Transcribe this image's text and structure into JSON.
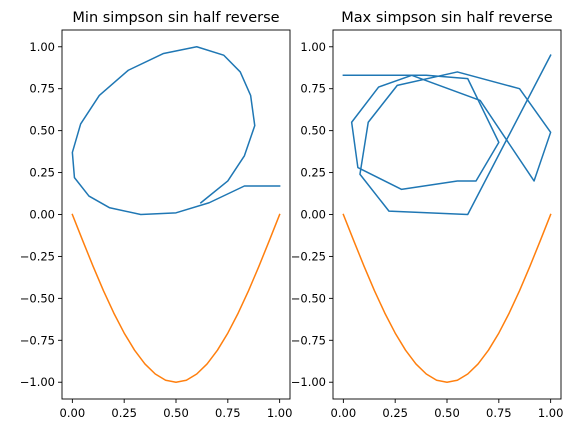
{
  "chart_data": [
    {
      "type": "line",
      "title": "Min simpson sin half reverse",
      "xlabel": "",
      "ylabel": "",
      "xlim": [
        -0.05,
        1.05
      ],
      "ylim": [
        -1.1,
        1.1
      ],
      "xticks": [
        0.0,
        0.25,
        0.5,
        0.75,
        1.0
      ],
      "xtick_labels": [
        "0.00",
        "0.25",
        "0.50",
        "0.75",
        "1.00"
      ],
      "yticks": [
        -1.0,
        -0.75,
        -0.5,
        -0.25,
        0.0,
        0.25,
        0.5,
        0.75,
        1.0
      ],
      "ytick_labels": [
        "−1.00",
        "−0.75",
        "−0.50",
        "−0.25",
        "0.00",
        "0.25",
        "0.50",
        "0.75",
        "1.00"
      ],
      "grid": false,
      "series": [
        {
          "color": "#1f77b4",
          "x": [
            0.62,
            0.75,
            0.83,
            0.88,
            0.86,
            0.81,
            0.73,
            0.6,
            0.44,
            0.27,
            0.13,
            0.04,
            0.0,
            0.01,
            0.08,
            0.18,
            0.33,
            0.5,
            0.66,
            0.83,
            1.0
          ],
          "y": [
            0.07,
            0.2,
            0.35,
            0.53,
            0.71,
            0.85,
            0.95,
            1.0,
            0.96,
            0.86,
            0.71,
            0.54,
            0.37,
            0.22,
            0.11,
            0.04,
            0.0,
            0.01,
            0.07,
            0.17,
            0.17
          ]
        },
        {
          "color": "#ff7f0e",
          "x": [
            0.0,
            0.05,
            0.1,
            0.15,
            0.2,
            0.25,
            0.3,
            0.35,
            0.4,
            0.45,
            0.5,
            0.55,
            0.6,
            0.65,
            0.7,
            0.75,
            0.8,
            0.85,
            0.9,
            0.95,
            1.0
          ],
          "y": [
            0.0,
            -0.156,
            -0.309,
            -0.454,
            -0.588,
            -0.707,
            -0.809,
            -0.891,
            -0.951,
            -0.988,
            -1.0,
            -0.988,
            -0.951,
            -0.891,
            -0.809,
            -0.707,
            -0.588,
            -0.454,
            -0.309,
            -0.156,
            0.0
          ]
        }
      ]
    },
    {
      "type": "line",
      "title": "Max simpson sin half reverse",
      "xlabel": "",
      "ylabel": "",
      "xlim": [
        -0.05,
        1.05
      ],
      "ylim": [
        -1.1,
        1.1
      ],
      "xticks": [
        0.0,
        0.25,
        0.5,
        0.75,
        1.0
      ],
      "xtick_labels": [
        "0.00",
        "0.25",
        "0.50",
        "0.75",
        "1.00"
      ],
      "yticks": [
        -1.0,
        -0.75,
        -0.5,
        -0.25,
        0.0,
        0.25,
        0.5,
        0.75,
        1.0
      ],
      "ytick_labels": [
        "−1.00",
        "−0.75",
        "−0.50",
        "−0.25",
        "0.00",
        "0.25",
        "0.50",
        "0.75",
        "1.00"
      ],
      "grid": false,
      "series": [
        {
          "color": "#1f77b4",
          "x": [
            0.0,
            0.35,
            0.4,
            0.6,
            0.75,
            0.64,
            0.55,
            0.28,
            0.07,
            0.04,
            0.17,
            0.33,
            0.66,
            0.92,
            1.0,
            0.85,
            0.55,
            0.26,
            0.12,
            0.08,
            0.22,
            0.6,
            1.0
          ],
          "y": [
            0.83,
            0.83,
            0.83,
            0.81,
            0.43,
            0.2,
            0.2,
            0.15,
            0.28,
            0.55,
            0.76,
            0.83,
            0.68,
            0.2,
            0.49,
            0.75,
            0.85,
            0.77,
            0.55,
            0.24,
            0.02,
            0.0,
            0.95
          ]
        },
        {
          "color": "#ff7f0e",
          "x": [
            0.0,
            0.05,
            0.1,
            0.15,
            0.2,
            0.25,
            0.3,
            0.35,
            0.4,
            0.45,
            0.5,
            0.55,
            0.6,
            0.65,
            0.7,
            0.75,
            0.8,
            0.85,
            0.9,
            0.95,
            1.0
          ],
          "y": [
            0.0,
            -0.156,
            -0.309,
            -0.454,
            -0.588,
            -0.707,
            -0.809,
            -0.891,
            -0.951,
            -0.988,
            -1.0,
            -0.988,
            -0.951,
            -0.891,
            -0.809,
            -0.707,
            -0.588,
            -0.454,
            -0.309,
            -0.156,
            0.0
          ]
        }
      ]
    }
  ]
}
